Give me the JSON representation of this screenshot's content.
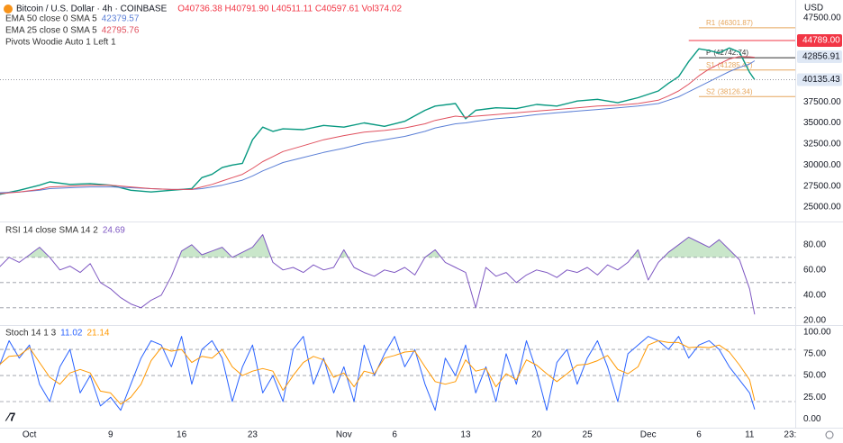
{
  "chart_data": [
    {
      "type": "line",
      "title": "Bitcoin / U.S. Dollar · 4h · COINBASE",
      "ohlc": "O40736.38 H40791.90 L40511.11 C40597.61 Vol374.02",
      "currency": "USD",
      "pivots_name": "Pivots Woodie Auto 1 Left 1",
      "x": [
        -3,
        -1,
        1,
        2,
        4,
        6,
        8,
        10,
        12,
        14,
        16,
        17,
        18,
        19,
        20,
        21,
        22,
        23,
        24,
        25,
        27,
        29,
        31,
        33,
        35,
        37,
        39,
        40,
        42,
        43,
        44,
        46,
        48,
        50,
        52,
        54,
        56,
        58,
        60,
        62,
        63,
        64,
        65,
        66,
        67,
        68,
        69,
        70,
        71,
        71.5
      ],
      "xlim": [
        -2.9,
        75.5
      ],
      "xticks": [
        {
          "value": 0,
          "label": "Oct"
        },
        {
          "value": 8,
          "label": "9"
        },
        {
          "value": 15,
          "label": "16"
        },
        {
          "value": 22,
          "label": "23"
        },
        {
          "value": 31,
          "label": "Nov"
        },
        {
          "value": 36,
          "label": "6"
        },
        {
          "value": 43,
          "label": "13"
        },
        {
          "value": 50,
          "label": "20"
        },
        {
          "value": 55,
          "label": "25"
        },
        {
          "value": 61,
          "label": "Dec"
        },
        {
          "value": 66,
          "label": "6"
        },
        {
          "value": 71,
          "label": "11"
        },
        {
          "value": 75,
          "label": "23:"
        }
      ],
      "ylim": [
        23400,
        49600
      ],
      "yticks": [
        {
          "value": 25000,
          "label": "25000.00"
        },
        {
          "value": 27500,
          "label": "27500.00"
        },
        {
          "value": 30000,
          "label": "30000.00"
        },
        {
          "value": 32500,
          "label": "32500.00"
        },
        {
          "value": 35000,
          "label": "35000.00"
        },
        {
          "value": 37500,
          "label": "37500.00"
        },
        {
          "value": 47500,
          "label": "47500.00"
        }
      ],
      "series": [
        {
          "color": "#089981",
          "values": [
            26500,
            27000,
            27600,
            28000,
            27700,
            27800,
            27600,
            27000,
            26800,
            27000,
            27200,
            28500,
            28900,
            29700,
            30000,
            30200,
            33000,
            34500,
            34000,
            34300,
            34200,
            34700,
            34500,
            35000,
            34600,
            35200,
            36500,
            37000,
            37300,
            35500,
            36500,
            36800,
            36700,
            37200,
            37000,
            37600,
            37800,
            37400,
            38000,
            38800,
            39700,
            40500,
            42300,
            43800,
            43600,
            43300,
            43900,
            43400,
            41000,
            40135.43
          ]
        },
        {
          "name": "EMA 50 close 0 SMA 5",
          "color": "#5b7fd6",
          "values": [
            26700,
            26800,
            27000,
            27200,
            27300,
            27400,
            27400,
            27300,
            27200,
            27100,
            27100,
            27200,
            27400,
            27600,
            27900,
            28200,
            28700,
            29300,
            29800,
            30300,
            30900,
            31500,
            32000,
            32600,
            33000,
            33400,
            34000,
            34400,
            34900,
            35000,
            35200,
            35500,
            35700,
            36000,
            36200,
            36400,
            36600,
            36800,
            37000,
            37300,
            37700,
            38100,
            38700,
            39300,
            39900,
            40500,
            41100,
            41600,
            42000,
            42379.57
          ]
        },
        {
          "name": "EMA 25 close 0 SMA 5",
          "color": "#e0505e",
          "values": [
            26600,
            26800,
            27100,
            27400,
            27500,
            27600,
            27600,
            27400,
            27200,
            27100,
            27100,
            27400,
            27700,
            28100,
            28500,
            28900,
            29600,
            30400,
            31000,
            31600,
            32300,
            33000,
            33500,
            33900,
            34100,
            34400,
            34900,
            35300,
            35800,
            35700,
            35800,
            36000,
            36200,
            36400,
            36600,
            36800,
            37000,
            37100,
            37300,
            37700,
            38200,
            38800,
            39600,
            40600,
            41400,
            42000,
            42600,
            42900,
            42850,
            42795.76
          ]
        }
      ],
      "pivot_start": 66,
      "pivots": [
        {
          "name": "R1",
          "value": 46301.87,
          "label": "(46301.87)",
          "color": "#e6a65d"
        },
        {
          "name": "P",
          "value": 42742.74,
          "label": "(42742.74)",
          "color": "#333333"
        },
        {
          "name": "S1",
          "value": 41285.47,
          "label": "(41285.47)",
          "color": "#e6a65d"
        },
        {
          "name": "S2",
          "value": 38126.34,
          "label": "(38126.34)",
          "color": "#e6a65d"
        }
      ],
      "price_labels": [
        {
          "value": 44789,
          "label": "44789.00",
          "bg": "#f23645",
          "fg": "#ffffff",
          "line": "solid",
          "from": 65
        },
        {
          "value": 42856.91,
          "label": "42856.91",
          "bg": "#dfe8f5",
          "fg": "#131722"
        },
        {
          "value": 40135.43,
          "label": "40135.43",
          "bg": "#dfe8f5",
          "fg": "#131722",
          "line": "dotted",
          "from": -2.9
        }
      ]
    },
    {
      "type": "line",
      "legend": "RSI 14 close SMA 14 2",
      "x": [
        -3,
        -2,
        -1,
        0,
        1,
        2,
        3,
        4,
        5,
        6,
        7,
        8,
        9,
        10,
        11,
        12,
        13,
        14,
        15,
        16,
        17,
        18,
        19,
        20,
        21,
        22,
        23,
        24,
        25,
        26,
        27,
        28,
        29,
        30,
        31,
        32,
        33,
        34,
        35,
        36,
        37,
        38,
        39,
        40,
        41,
        42,
        43,
        44,
        45,
        46,
        47,
        48,
        49,
        50,
        51,
        52,
        53,
        54,
        55,
        56,
        57,
        58,
        59,
        60,
        61,
        62,
        63,
        64,
        65,
        66,
        67,
        68,
        69,
        70,
        71,
        71.5
      ],
      "ylim": [
        17,
        97
      ],
      "yticks": [
        {
          "value": 20,
          "label": "20.00"
        },
        {
          "value": 40,
          "label": "40.00"
        },
        {
          "value": 60,
          "label": "60.00"
        },
        {
          "value": 80,
          "label": "80.00"
        }
      ],
      "bands": [
        70,
        50,
        30
      ],
      "overbought_color": "#a5d6a7",
      "series": [
        {
          "color": "#7e57c2",
          "values": [
            62,
            70,
            66,
            72,
            78,
            70,
            60,
            63,
            58,
            65,
            50,
            45,
            38,
            33,
            30,
            36,
            40,
            55,
            75,
            80,
            72,
            75,
            78,
            70,
            74,
            78,
            88,
            66,
            60,
            62,
            58,
            64,
            60,
            62,
            76,
            62,
            58,
            55,
            60,
            58,
            62,
            56,
            70,
            76,
            66,
            62,
            58,
            30,
            62,
            55,
            58,
            50,
            56,
            60,
            58,
            54,
            60,
            58,
            62,
            56,
            64,
            60,
            66,
            76,
            52,
            66,
            74,
            80,
            86,
            82,
            78,
            84,
            76,
            68,
            45,
            24.69
          ]
        }
      ]
    },
    {
      "type": "line",
      "legend": "Stoch 14 1 3",
      "x": [
        -3,
        -2,
        -1,
        0,
        1,
        2,
        3,
        4,
        5,
        6,
        7,
        8,
        9,
        10,
        11,
        12,
        13,
        14,
        15,
        16,
        17,
        18,
        19,
        20,
        21,
        22,
        23,
        24,
        25,
        26,
        27,
        28,
        29,
        30,
        31,
        32,
        33,
        34,
        35,
        36,
        37,
        38,
        39,
        40,
        41,
        42,
        43,
        44,
        45,
        46,
        47,
        48,
        49,
        50,
        51,
        52,
        53,
        54,
        55,
        56,
        57,
        58,
        59,
        60,
        61,
        62,
        63,
        64,
        65,
        66,
        67,
        68,
        69,
        70,
        71,
        71.5
      ],
      "ylim": [
        -10,
        107
      ],
      "yticks": [
        {
          "value": 0,
          "label": "0.00"
        },
        {
          "value": 25,
          "label": "25.00"
        },
        {
          "value": 50,
          "label": "50.00"
        },
        {
          "value": 75,
          "label": "75.00"
        },
        {
          "value": 100,
          "label": "100.00"
        }
      ],
      "bands": [
        80,
        50,
        20
      ],
      "series": [
        {
          "color": "#2962ff",
          "values": [
            60,
            90,
            70,
            85,
            40,
            20,
            60,
            80,
            30,
            50,
            15,
            25,
            10,
            40,
            70,
            90,
            85,
            60,
            95,
            40,
            80,
            90,
            70,
            20,
            60,
            85,
            30,
            50,
            20,
            80,
            95,
            40,
            70,
            30,
            60,
            20,
            85,
            50,
            75,
            95,
            60,
            80,
            40,
            10,
            70,
            50,
            85,
            30,
            60,
            20,
            75,
            40,
            90,
            55,
            10,
            65,
            80,
            40,
            70,
            90,
            60,
            20,
            75,
            85,
            95,
            90,
            80,
            95,
            70,
            85,
            90,
            80,
            60,
            45,
            30,
            11.02
          ]
        },
        {
          "color": "#ff9800",
          "values": [
            62,
            72,
            73,
            82,
            65,
            48,
            40,
            53,
            57,
            53,
            32,
            30,
            17,
            25,
            40,
            67,
            82,
            78,
            80,
            65,
            72,
            70,
            80,
            60,
            50,
            55,
            58,
            55,
            33,
            50,
            65,
            72,
            68,
            48,
            53,
            37,
            55,
            52,
            70,
            73,
            77,
            78,
            60,
            43,
            40,
            43,
            68,
            55,
            58,
            37,
            52,
            45,
            68,
            62,
            52,
            43,
            52,
            62,
            63,
            67,
            73,
            57,
            52,
            60,
            85,
            90,
            88,
            88,
            82,
            83,
            82,
            85,
            77,
            62,
            45,
            21.14
          ]
        }
      ]
    }
  ]
}
